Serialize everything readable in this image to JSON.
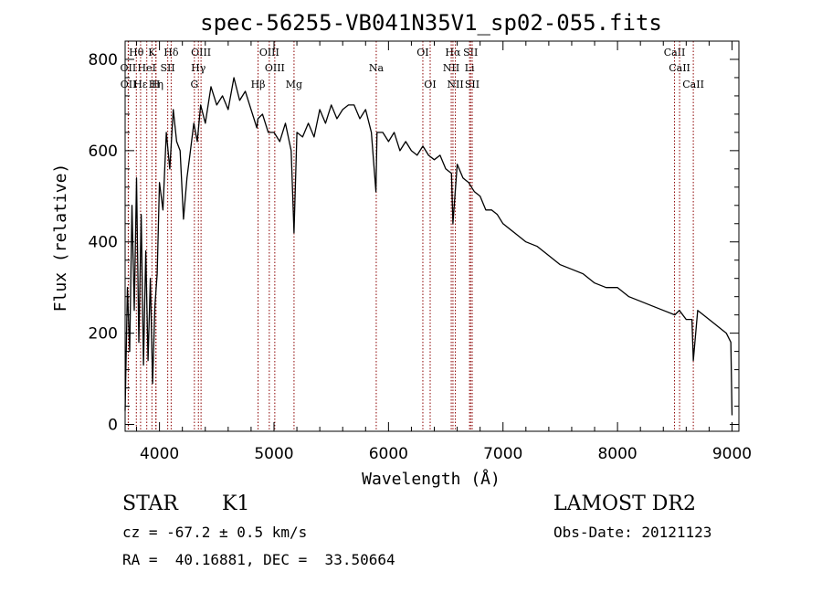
{
  "chart_data": {
    "type": "line",
    "title": "spec-56255-VB041N35V1_sp02-055.fits",
    "xlabel": "Wavelength (Å)",
    "ylabel": "Flux (relative)",
    "xlim": [
      3700,
      9060
    ],
    "ylim": [
      -15,
      840
    ],
    "xticks": [
      4000,
      5000,
      6000,
      7000,
      8000,
      9000
    ],
    "yticks": [
      0,
      200,
      400,
      600,
      800
    ],
    "x_minor_step": 200,
    "y_minor_step": 40,
    "line_color": "#000000",
    "marker_color": "#8b0000",
    "series": [
      {
        "x": [
          3700,
          3720,
          3740,
          3760,
          3780,
          3800,
          3820,
          3840,
          3860,
          3880,
          3900,
          3920,
          3940,
          3960,
          3980,
          4000,
          4030,
          4060,
          4090,
          4120,
          4150,
          4180,
          4210,
          4240,
          4270,
          4300,
          4330,
          4360,
          4400,
          4450,
          4500,
          4550,
          4600,
          4650,
          4700,
          4750,
          4800,
          4850,
          4860,
          4900,
          4950,
          5000,
          5050,
          5100,
          5150,
          5175,
          5200,
          5250,
          5300,
          5350,
          5400,
          5450,
          5500,
          5550,
          5600,
          5650,
          5700,
          5750,
          5800,
          5850,
          5890,
          5900,
          5950,
          6000,
          6050,
          6100,
          6150,
          6200,
          6250,
          6300,
          6350,
          6400,
          6450,
          6500,
          6550,
          6563,
          6600,
          6650,
          6700,
          6750,
          6800,
          6850,
          6900,
          6950,
          7000,
          7100,
          7200,
          7300,
          7400,
          7500,
          7600,
          7700,
          7800,
          7900,
          8000,
          8100,
          8200,
          8300,
          8400,
          8500,
          8540,
          8600,
          8650,
          8662,
          8700,
          8750,
          8800,
          8850,
          8900,
          8950,
          8990,
          9000
        ],
        "y": [
          30,
          300,
          160,
          480,
          250,
          540,
          180,
          460,
          130,
          380,
          140,
          320,
          90,
          260,
          330,
          530,
          470,
          640,
          560,
          690,
          620,
          600,
          450,
          540,
          600,
          660,
          620,
          700,
          660,
          740,
          700,
          720,
          690,
          760,
          710,
          730,
          690,
          650,
          670,
          680,
          640,
          640,
          620,
          660,
          600,
          420,
          640,
          630,
          660,
          630,
          690,
          660,
          700,
          670,
          690,
          700,
          700,
          670,
          690,
          640,
          510,
          640,
          640,
          620,
          640,
          600,
          620,
          600,
          590,
          610,
          590,
          580,
          590,
          560,
          550,
          440,
          570,
          540,
          530,
          510,
          500,
          470,
          470,
          460,
          440,
          420,
          400,
          390,
          370,
          350,
          340,
          330,
          310,
          300,
          300,
          280,
          270,
          260,
          250,
          240,
          250,
          230,
          230,
          140,
          250,
          240,
          230,
          220,
          210,
          200,
          180,
          20
        ]
      }
    ],
    "lines": [
      {
        "name": "Hθ",
        "x": 3798,
        "row": 0
      },
      {
        "name": "K",
        "x": 3934,
        "row": 0
      },
      {
        "name": "Hδ",
        "x": 4102,
        "row": 0
      },
      {
        "name": "OIII",
        "x": 4363,
        "row": 0
      },
      {
        "name": "OIII",
        "x": 4959,
        "row": 0
      },
      {
        "name": "OI",
        "x": 6300,
        "row": 0
      },
      {
        "name": "Hα",
        "x": 6563,
        "row": 0
      },
      {
        "name": "SII",
        "x": 6717,
        "row": 0
      },
      {
        "name": "CaII",
        "x": 8498,
        "row": 0
      },
      {
        "name": "OII",
        "x": 3727,
        "row": 1
      },
      {
        "name": "HeI",
        "x": 3889,
        "row": 1
      },
      {
        "name": "SII",
        "x": 4072,
        "row": 1
      },
      {
        "name": "Hγ",
        "x": 4340,
        "row": 1
      },
      {
        "name": "OIII",
        "x": 5007,
        "row": 1
      },
      {
        "name": "Na",
        "x": 5893,
        "row": 1
      },
      {
        "name": "NII",
        "x": 6548,
        "row": 1
      },
      {
        "name": "Li",
        "x": 6708,
        "row": 1
      },
      {
        "name": "CaII",
        "x": 8542,
        "row": 1
      },
      {
        "name": "OII",
        "x": 3729,
        "row": 2
      },
      {
        "name": "Hε",
        "x": 3835,
        "row": 2
      },
      {
        "name": "Hη",
        "x": 3970,
        "row": 2
      },
      {
        "name": "H",
        "x": 3968,
        "row": 2
      },
      {
        "name": "G",
        "x": 4305,
        "row": 2
      },
      {
        "name": "Hβ",
        "x": 4861,
        "row": 2
      },
      {
        "name": "Mg",
        "x": 5175,
        "row": 2
      },
      {
        "name": "OI",
        "x": 6364,
        "row": 2
      },
      {
        "name": "NII",
        "x": 6584,
        "row": 2
      },
      {
        "name": "SII",
        "x": 6731,
        "row": 2
      },
      {
        "name": "CaII",
        "x": 8662,
        "row": 2
      }
    ]
  },
  "info": {
    "object_class": "STAR",
    "subclass": "K1",
    "survey": "LAMOST DR2",
    "redshift": "cz = -67.2 ± 0.5 km/s",
    "obs_date": "Obs-Date: 20121123",
    "coords": "RA =  40.16881, DEC =  33.50664"
  }
}
